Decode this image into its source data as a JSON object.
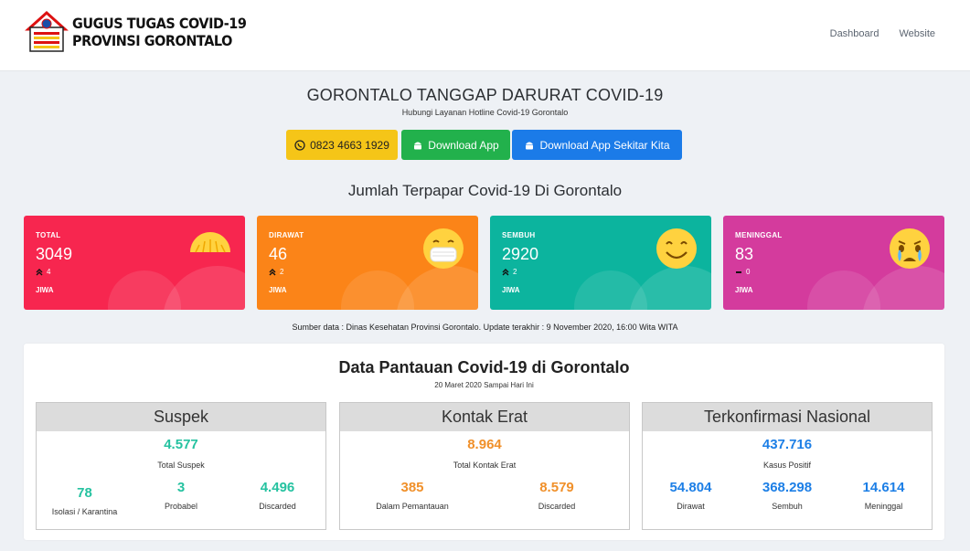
{
  "header": {
    "logo_line1": "GUGUS TUGAS COVID-19",
    "logo_line2": "PROVINSI GORONTALO",
    "nav": [
      "Dashboard",
      "Website"
    ]
  },
  "hero": {
    "title": "GORONTALO TANGGAP DARURAT COVID-19",
    "subtitle": "Hubungi Layanan Hotline Covid-19 Gorontalo",
    "buttons": {
      "hotline": "0823 4663 1929",
      "download_app": "Download App",
      "download_app_sekitar": "Download App Sekitar Kita"
    }
  },
  "stats": {
    "section_title": "Jumlah Terpapar Covid-19 Di Gorontalo",
    "cards": [
      {
        "label": "TOTAL",
        "value": "3049",
        "delta": "4",
        "unit": "JIWA",
        "color": "#f7264f",
        "icon": "sun-icon"
      },
      {
        "label": "DIRAWAT",
        "value": "46",
        "delta": "2",
        "unit": "JIWA",
        "color": "#fb8418",
        "icon": "mask-face-icon"
      },
      {
        "label": "SEMBUH",
        "value": "2920",
        "delta": "2",
        "unit": "JIWA",
        "color": "#0cb49e",
        "icon": "smile-face-icon"
      },
      {
        "label": "MENINGGAL",
        "value": "83",
        "delta": "0",
        "unit": "JIWA",
        "color": "#d43b9d",
        "icon": "crying-face-icon"
      }
    ],
    "source": "Sumber data : Dinas Kesehatan Provinsi Gorontalo. Update terakhir : 9 November 2020, 16:00 Wita WITA"
  },
  "monitoring": {
    "title": "Data Pantauan Covid-19 di Gorontalo",
    "subtitle": "20 Maret 2020 Sampai Hari Ini",
    "suspek": {
      "header": "Suspek",
      "total": "4.577",
      "total_label": "Total Suspek",
      "items": [
        {
          "value": "78",
          "label": "Isolasi / Karantina"
        },
        {
          "value": "3",
          "label": "Probabel"
        },
        {
          "value": "4.496",
          "label": "Discarded"
        }
      ]
    },
    "kontak": {
      "header": "Kontak Erat",
      "total": "8.964",
      "total_label": "Total Kontak Erat",
      "items": [
        {
          "value": "385",
          "label": "Dalam Pemantauan"
        },
        {
          "value": "8.579",
          "label": "Discarded"
        }
      ]
    },
    "nasional": {
      "header": "Terkonfirmasi Nasional",
      "total": "437.716",
      "total_label": "Kasus Positif",
      "items": [
        {
          "value": "54.804",
          "label": "Dirawat"
        },
        {
          "value": "368.298",
          "label": "Sembuh"
        },
        {
          "value": "14.614",
          "label": "Meninggal"
        }
      ]
    }
  },
  "colors": {
    "suspek": "#25c2a0",
    "kontak": "#f0902a",
    "nasional": "#1d7fe6"
  }
}
